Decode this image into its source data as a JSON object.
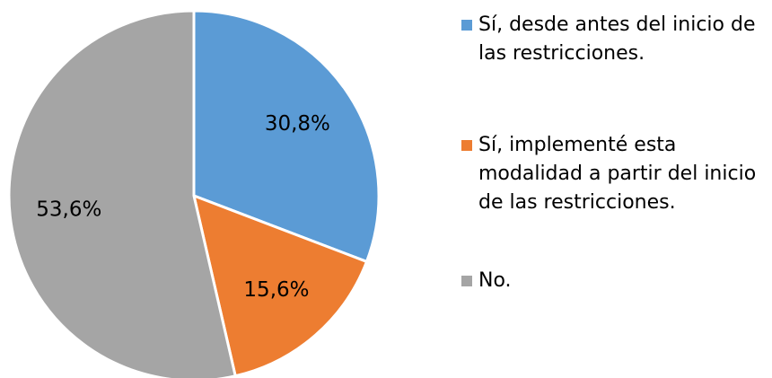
{
  "chart_data": {
    "type": "pie",
    "categories": [
      "Sí, desde antes del inicio de las restricciones.",
      "Sí, implementé esta modalidad a partir del inicio de las restricciones.",
      "No."
    ],
    "values": [
      30.8,
      15.6,
      53.6
    ],
    "value_labels": [
      "30,8%",
      "15,6%",
      "53,6%"
    ],
    "colors": [
      "#5b9bd5",
      "#ed7d31",
      "#a5a5a5"
    ],
    "legend": "right"
  }
}
